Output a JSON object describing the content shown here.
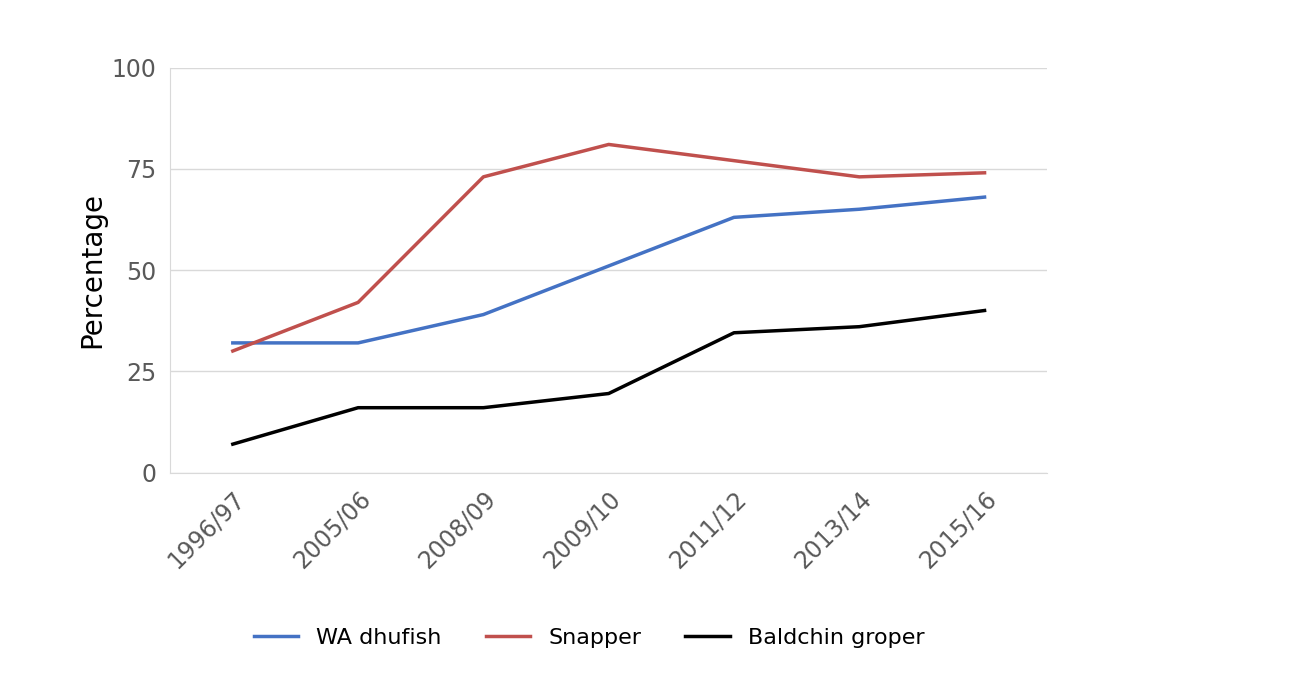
{
  "chart_data": {
    "type": "line",
    "y_label": "Percentage",
    "categories": [
      "1996/97",
      "2005/06",
      "2008/09",
      "2009/10",
      "2011/12",
      "2013/14",
      "2015/16"
    ],
    "series": [
      {
        "name": "WA dhufish",
        "color": "#4472c4",
        "values": [
          32,
          32,
          39,
          51,
          63,
          65,
          68
        ]
      },
      {
        "name": "Snapper",
        "color": "#c0504d",
        "values": [
          30,
          42,
          73,
          81,
          77,
          73,
          74
        ]
      },
      {
        "name": "Baldchin groper",
        "color": "#000000",
        "values": [
          7,
          16,
          16,
          19.5,
          34.5,
          36,
          40
        ]
      }
    ],
    "ylim": [
      0,
      100
    ],
    "yticks": [
      0,
      25,
      50,
      75,
      100
    ],
    "grid": true,
    "legend": "lower center"
  }
}
